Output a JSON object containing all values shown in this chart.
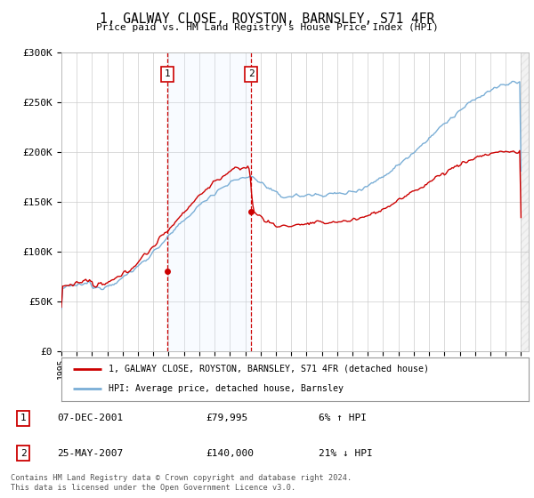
{
  "title": "1, GALWAY CLOSE, ROYSTON, BARNSLEY, S71 4FR",
  "subtitle": "Price paid vs. HM Land Registry's House Price Index (HPI)",
  "ylabel_ticks": [
    "£0",
    "£50K",
    "£100K",
    "£150K",
    "£200K",
    "£250K",
    "£300K"
  ],
  "ylim": [
    0,
    300000
  ],
  "ytick_vals": [
    0,
    50000,
    100000,
    150000,
    200000,
    250000,
    300000
  ],
  "t1_year": 2001.92,
  "t2_year": 2007.38,
  "t1_price": 79995,
  "t2_price": 140000,
  "legend_entry1": "1, GALWAY CLOSE, ROYSTON, BARNSLEY, S71 4FR (detached house)",
  "legend_entry2": "HPI: Average price, detached house, Barnsley",
  "table_rows": [
    {
      "num": "1",
      "date": "07-DEC-2001",
      "price": "£79,995",
      "pct": "6% ↑ HPI"
    },
    {
      "num": "2",
      "date": "25-MAY-2007",
      "price": "£140,000",
      "pct": "21% ↓ HPI"
    }
  ],
  "footer": "Contains HM Land Registry data © Crown copyright and database right 2024.\nThis data is licensed under the Open Government Licence v3.0.",
  "background_color": "#ffffff",
  "grid_color": "#cccccc",
  "hpi_color": "#7aaed6",
  "price_color": "#cc0000",
  "shade_color": "#ddeeff",
  "dashed_color": "#cc0000"
}
